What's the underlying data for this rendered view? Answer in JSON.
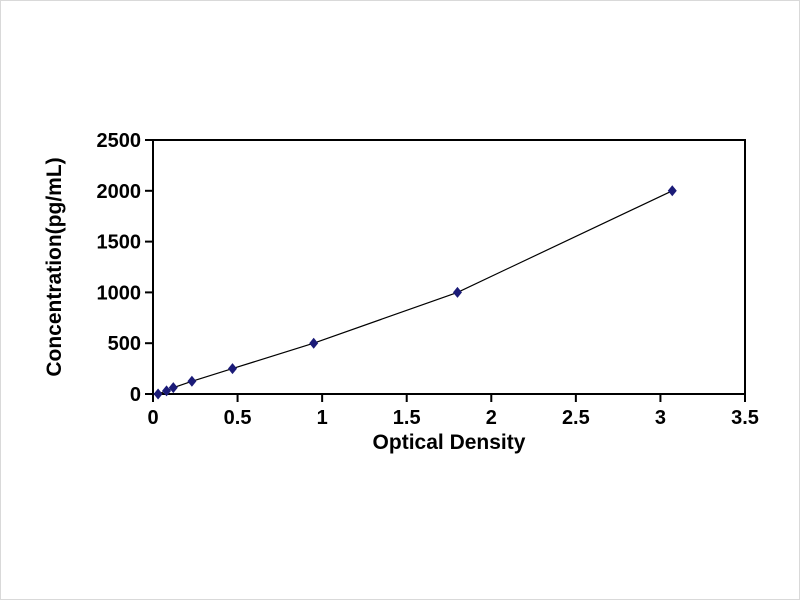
{
  "chart_data": {
    "type": "line",
    "title": "",
    "xlabel": "Optical Density",
    "ylabel": "Concentration(pg/mL)",
    "xlim": [
      0,
      3.5
    ],
    "ylim": [
      0,
      2500
    ],
    "x_ticks": [
      0,
      0.5,
      1,
      1.5,
      2,
      2.5,
      3,
      3.5
    ],
    "x_tick_labels": [
      "0",
      "0.5",
      "1",
      "1.5",
      "2",
      "2.5",
      "3",
      "3.5"
    ],
    "y_ticks": [
      0,
      500,
      1000,
      1500,
      2000,
      2500
    ],
    "y_tick_labels": [
      "0",
      "500",
      "1000",
      "1500",
      "2000",
      "2500"
    ],
    "grid": false,
    "legend": false,
    "marker": "diamond",
    "marker_color": "#1b1b78",
    "line_color": "#000000",
    "frame_color": "#000000",
    "points": [
      {
        "x": 0.03,
        "y": 0
      },
      {
        "x": 0.08,
        "y": 31.25
      },
      {
        "x": 0.12,
        "y": 62.5
      },
      {
        "x": 0.23,
        "y": 125
      },
      {
        "x": 0.47,
        "y": 250
      },
      {
        "x": 0.95,
        "y": 500
      },
      {
        "x": 1.8,
        "y": 1000
      },
      {
        "x": 3.07,
        "y": 2000
      }
    ]
  }
}
